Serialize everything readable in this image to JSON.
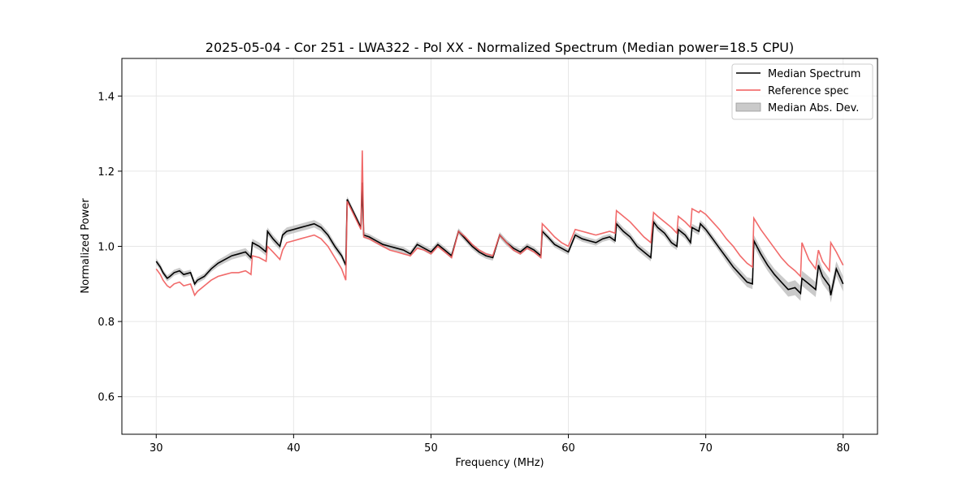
{
  "chart_data": {
    "type": "line",
    "title": "2025-05-04 - Cor 251 - LWA322 - Pol XX - Normalized Spectrum (Median power=18.5 CPU)",
    "xlabel": "Frequency (MHz)",
    "ylabel": "Normalized Power",
    "xlim": [
      27.5,
      82.5
    ],
    "ylim": [
      0.5,
      1.5
    ],
    "xticks": [
      30,
      40,
      50,
      60,
      70,
      80
    ],
    "yticks": [
      0.6,
      0.8,
      1.0,
      1.2,
      1.4
    ],
    "xtick_labels": [
      "30",
      "40",
      "50",
      "60",
      "70",
      "80"
    ],
    "ytick_labels": [
      "0.6",
      "0.8",
      "1.0",
      "1.2",
      "1.4"
    ],
    "grid": true,
    "legend_position": "top-right",
    "legend": [
      "Median Spectrum",
      "Reference spec",
      "Median Abs. Dev."
    ],
    "colors": {
      "median": "#000000",
      "reference": "#f05a5a",
      "mad": "#bdbdbd"
    },
    "series": [
      {
        "name": "Median Spectrum",
        "x": [
          30.0,
          30.3,
          30.5,
          30.8,
          31.0,
          31.3,
          31.7,
          32.0,
          32.5,
          32.8,
          33.0,
          33.5,
          34.0,
          34.5,
          35.0,
          35.5,
          36.0,
          36.5,
          36.9,
          37.0,
          37.5,
          38.0,
          38.1,
          38.5,
          39.0,
          39.2,
          39.5,
          40.0,
          40.5,
          41.0,
          41.5,
          42.0,
          42.5,
          43.0,
          43.5,
          43.8,
          43.9,
          44.5,
          44.9,
          45.0,
          45.1,
          45.5,
          46.0,
          46.5,
          47.0,
          47.5,
          48.0,
          48.5,
          49.0,
          49.5,
          50.0,
          50.5,
          51.0,
          51.5,
          52.0,
          52.5,
          53.0,
          53.5,
          54.0,
          54.5,
          55.0,
          55.5,
          56.0,
          56.5,
          57.0,
          57.5,
          58.0,
          58.1,
          58.5,
          59.0,
          59.5,
          60.0,
          60.5,
          61.0,
          61.5,
          62.0,
          62.5,
          63.0,
          63.4,
          63.5,
          64.0,
          64.5,
          65.0,
          65.5,
          66.0,
          66.2,
          66.5,
          67.0,
          67.5,
          67.9,
          68.0,
          68.5,
          68.9,
          69.0,
          69.5,
          69.6,
          70.0,
          70.5,
          71.0,
          71.5,
          72.0,
          72.5,
          73.0,
          73.4,
          73.5,
          74.0,
          74.5,
          75.0,
          75.5,
          76.0,
          76.5,
          76.9,
          77.0,
          77.5,
          78.0,
          78.2,
          78.5,
          79.0,
          79.1,
          79.5,
          80.0
        ],
        "values": [
          0.96,
          0.945,
          0.93,
          0.915,
          0.92,
          0.93,
          0.935,
          0.925,
          0.93,
          0.9,
          0.91,
          0.92,
          0.94,
          0.955,
          0.965,
          0.975,
          0.98,
          0.985,
          0.97,
          1.01,
          1.0,
          0.985,
          1.04,
          1.02,
          1.0,
          1.03,
          1.04,
          1.045,
          1.05,
          1.055,
          1.06,
          1.05,
          1.03,
          1.0,
          0.975,
          0.95,
          1.125,
          1.08,
          1.05,
          1.17,
          1.03,
          1.025,
          1.015,
          1.005,
          1.0,
          0.995,
          0.99,
          0.98,
          1.005,
          0.995,
          0.985,
          1.005,
          0.99,
          0.975,
          1.04,
          1.02,
          1.0,
          0.985,
          0.975,
          0.97,
          1.03,
          1.01,
          0.995,
          0.985,
          1.0,
          0.99,
          0.975,
          1.04,
          1.025,
          1.005,
          0.995,
          0.985,
          1.03,
          1.02,
          1.015,
          1.01,
          1.02,
          1.025,
          1.015,
          1.06,
          1.04,
          1.025,
          1.0,
          0.985,
          0.97,
          1.065,
          1.05,
          1.035,
          1.01,
          1.0,
          1.045,
          1.03,
          1.01,
          1.05,
          1.04,
          1.06,
          1.045,
          1.02,
          0.995,
          0.97,
          0.945,
          0.925,
          0.905,
          0.9,
          1.015,
          0.98,
          0.95,
          0.925,
          0.905,
          0.885,
          0.89,
          0.875,
          0.915,
          0.9,
          0.885,
          0.95,
          0.92,
          0.895,
          0.87,
          0.94,
          0.9
        ]
      },
      {
        "name": "Reference spec",
        "x": [
          30.0,
          30.3,
          30.5,
          30.8,
          31.0,
          31.3,
          31.7,
          32.0,
          32.5,
          32.8,
          33.0,
          33.5,
          34.0,
          34.5,
          35.0,
          35.5,
          36.0,
          36.5,
          36.9,
          37.0,
          37.5,
          38.0,
          38.1,
          38.5,
          39.0,
          39.2,
          39.5,
          40.0,
          40.5,
          41.0,
          41.5,
          42.0,
          42.5,
          43.0,
          43.5,
          43.8,
          43.9,
          44.5,
          44.9,
          45.0,
          45.1,
          45.5,
          46.0,
          46.5,
          47.0,
          47.5,
          48.0,
          48.5,
          49.0,
          49.5,
          50.0,
          50.5,
          51.0,
          51.5,
          52.0,
          52.5,
          53.0,
          53.5,
          54.0,
          54.5,
          55.0,
          55.5,
          56.0,
          56.5,
          57.0,
          57.5,
          58.0,
          58.1,
          58.5,
          59.0,
          59.5,
          60.0,
          60.5,
          61.0,
          61.5,
          62.0,
          62.5,
          63.0,
          63.4,
          63.5,
          64.0,
          64.5,
          65.0,
          65.5,
          66.0,
          66.2,
          66.5,
          67.0,
          67.5,
          67.9,
          68.0,
          68.5,
          68.9,
          69.0,
          69.5,
          69.6,
          70.0,
          70.5,
          71.0,
          71.5,
          72.0,
          72.5,
          73.0,
          73.4,
          73.5,
          74.0,
          74.5,
          75.0,
          75.5,
          76.0,
          76.5,
          76.9,
          77.0,
          77.5,
          78.0,
          78.2,
          78.5,
          79.0,
          79.1,
          79.5,
          80.0
        ],
        "values": [
          0.94,
          0.925,
          0.91,
          0.895,
          0.89,
          0.9,
          0.905,
          0.895,
          0.9,
          0.87,
          0.88,
          0.895,
          0.91,
          0.92,
          0.925,
          0.93,
          0.93,
          0.935,
          0.925,
          0.975,
          0.97,
          0.96,
          1.0,
          0.985,
          0.965,
          0.99,
          1.01,
          1.015,
          1.02,
          1.025,
          1.03,
          1.02,
          1.0,
          0.97,
          0.94,
          0.91,
          1.12,
          1.075,
          1.045,
          1.255,
          1.025,
          1.02,
          1.01,
          1.0,
          0.99,
          0.985,
          0.98,
          0.975,
          0.995,
          0.99,
          0.98,
          1.0,
          0.985,
          0.97,
          1.04,
          1.025,
          1.005,
          0.99,
          0.98,
          0.975,
          1.03,
          1.01,
          0.99,
          0.98,
          0.995,
          0.985,
          0.97,
          1.06,
          1.045,
          1.025,
          1.01,
          1.0,
          1.045,
          1.04,
          1.035,
          1.03,
          1.035,
          1.04,
          1.035,
          1.095,
          1.08,
          1.065,
          1.045,
          1.025,
          1.01,
          1.09,
          1.08,
          1.065,
          1.05,
          1.035,
          1.08,
          1.065,
          1.05,
          1.1,
          1.09,
          1.095,
          1.085,
          1.065,
          1.045,
          1.02,
          1.0,
          0.975,
          0.955,
          0.945,
          1.075,
          1.045,
          1.02,
          0.995,
          0.97,
          0.95,
          0.935,
          0.92,
          1.01,
          0.965,
          0.94,
          0.99,
          0.96,
          0.935,
          1.01,
          0.985,
          0.95
        ]
      },
      {
        "name": "Median Abs. Dev.",
        "x": [
          30.0,
          30.3,
          30.5,
          30.8,
          31.0,
          31.3,
          31.7,
          32.0,
          32.5,
          32.8,
          33.0,
          33.5,
          34.0,
          34.5,
          35.0,
          35.5,
          36.0,
          36.5,
          36.9,
          37.0,
          37.5,
          38.0,
          38.1,
          38.5,
          39.0,
          39.2,
          39.5,
          40.0,
          40.5,
          41.0,
          41.5,
          42.0,
          42.5,
          43.0,
          43.5,
          43.8,
          43.9,
          44.5,
          44.9,
          45.0,
          45.1,
          45.5,
          46.0,
          46.5,
          47.0,
          47.5,
          48.0,
          48.5,
          49.0,
          49.5,
          50.0,
          50.5,
          51.0,
          51.5,
          52.0,
          52.5,
          53.0,
          53.5,
          54.0,
          54.5,
          55.0,
          55.5,
          56.0,
          56.5,
          57.0,
          57.5,
          58.0,
          58.1,
          58.5,
          59.0,
          59.5,
          60.0,
          60.5,
          61.0,
          61.5,
          62.0,
          62.5,
          63.0,
          63.4,
          63.5,
          64.0,
          64.5,
          65.0,
          65.5,
          66.0,
          66.2,
          66.5,
          67.0,
          67.5,
          67.9,
          68.0,
          68.5,
          68.9,
          69.0,
          69.5,
          69.6,
          70.0,
          70.5,
          71.0,
          71.5,
          72.0,
          72.5,
          73.0,
          73.4,
          73.5,
          74.0,
          74.5,
          75.0,
          75.5,
          76.0,
          76.5,
          76.9,
          77.0,
          77.5,
          78.0,
          78.2,
          78.5,
          79.0,
          79.1,
          79.5,
          80.0
        ],
        "lower": [
          0.952,
          0.937,
          0.922,
          0.907,
          0.912,
          0.922,
          0.927,
          0.917,
          0.922,
          0.892,
          0.902,
          0.912,
          0.932,
          0.946,
          0.956,
          0.965,
          0.97,
          0.975,
          0.96,
          1.0,
          0.99,
          0.975,
          1.03,
          1.01,
          0.99,
          1.02,
          1.03,
          1.035,
          1.04,
          1.045,
          1.05,
          1.04,
          1.02,
          0.99,
          0.966,
          0.942,
          1.117,
          1.072,
          1.042,
          1.162,
          1.022,
          1.017,
          1.007,
          0.997,
          0.992,
          0.987,
          0.982,
          0.972,
          0.997,
          0.987,
          0.977,
          0.997,
          0.982,
          0.967,
          1.032,
          1.012,
          0.992,
          0.977,
          0.967,
          0.962,
          1.022,
          1.002,
          0.987,
          0.977,
          0.992,
          0.982,
          0.967,
          1.032,
          1.017,
          0.997,
          0.987,
          0.977,
          1.022,
          1.012,
          1.007,
          1.002,
          1.012,
          1.017,
          1.007,
          1.05,
          1.03,
          1.015,
          0.99,
          0.975,
          0.96,
          1.055,
          1.04,
          1.025,
          1.0,
          0.99,
          1.035,
          1.02,
          1.0,
          1.04,
          1.03,
          1.05,
          1.035,
          1.01,
          0.985,
          0.958,
          0.933,
          0.912,
          0.892,
          0.886,
          1.0,
          0.965,
          0.935,
          0.91,
          0.888,
          0.866,
          0.87,
          0.855,
          0.895,
          0.88,
          0.865,
          0.93,
          0.9,
          0.875,
          0.85,
          0.92,
          0.88
        ],
        "upper": [
          0.968,
          0.953,
          0.938,
          0.923,
          0.928,
          0.938,
          0.943,
          0.933,
          0.938,
          0.908,
          0.918,
          0.928,
          0.948,
          0.964,
          0.974,
          0.985,
          0.99,
          0.995,
          0.98,
          1.02,
          1.01,
          0.995,
          1.05,
          1.03,
          1.01,
          1.04,
          1.05,
          1.055,
          1.06,
          1.065,
          1.07,
          1.06,
          1.04,
          1.01,
          0.984,
          0.958,
          1.133,
          1.088,
          1.058,
          1.178,
          1.038,
          1.033,
          1.023,
          1.013,
          1.008,
          1.003,
          0.998,
          0.988,
          1.013,
          1.003,
          0.993,
          1.013,
          0.998,
          0.983,
          1.048,
          1.028,
          1.008,
          0.993,
          0.983,
          0.978,
          1.038,
          1.018,
          1.003,
          0.993,
          1.008,
          0.998,
          0.983,
          1.048,
          1.033,
          1.013,
          1.003,
          0.993,
          1.038,
          1.028,
          1.023,
          1.018,
          1.028,
          1.033,
          1.023,
          1.07,
          1.05,
          1.035,
          1.01,
          0.995,
          0.98,
          1.075,
          1.06,
          1.045,
          1.02,
          1.01,
          1.055,
          1.04,
          1.02,
          1.06,
          1.05,
          1.07,
          1.055,
          1.03,
          1.005,
          0.982,
          0.957,
          0.938,
          0.918,
          0.914,
          1.03,
          0.995,
          0.965,
          0.94,
          0.922,
          0.904,
          0.91,
          0.895,
          0.935,
          0.92,
          0.905,
          0.97,
          0.94,
          0.915,
          0.89,
          0.96,
          0.92
        ]
      }
    ]
  }
}
